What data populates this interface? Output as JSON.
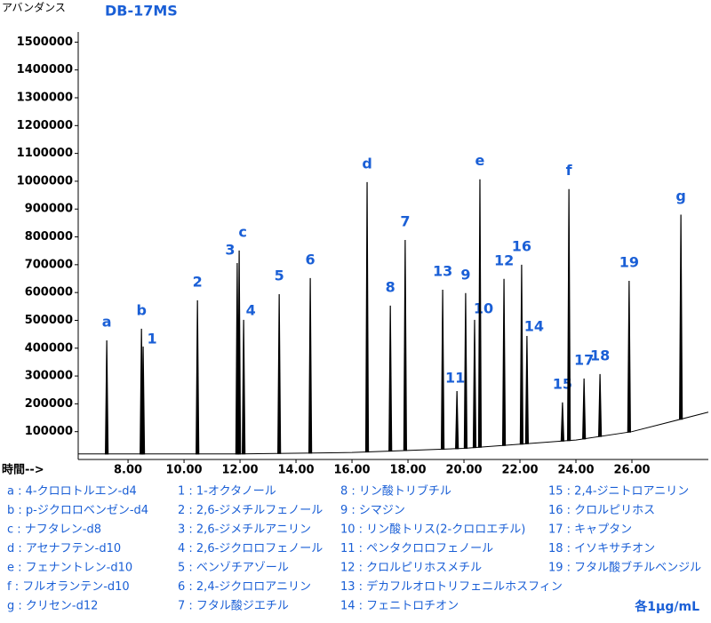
{
  "chart_data": {
    "type": "chromatogram",
    "title": "DB-17MS",
    "y_label": "アバンダンス",
    "x_label": "時間-->",
    "color": "#000000",
    "label_color": "#1a5fd6",
    "xlim": [
      6.22,
      28.73
    ],
    "ylim": [
      0,
      1530000
    ],
    "xticks": [
      {
        "value": 8,
        "label": "8.00"
      },
      {
        "value": 10,
        "label": "10.00"
      },
      {
        "value": 12,
        "label": "12.00"
      },
      {
        "value": 14,
        "label": "14.00"
      },
      {
        "value": 16,
        "label": "16.00"
      },
      {
        "value": 18,
        "label": "18.00"
      },
      {
        "value": 20,
        "label": "20.00"
      },
      {
        "value": 22,
        "label": "22.00"
      },
      {
        "value": 24,
        "label": "24.00"
      },
      {
        "value": 26,
        "label": "26.00"
      }
    ],
    "yticks": [
      100000,
      200000,
      300000,
      400000,
      500000,
      600000,
      700000,
      800000,
      900000,
      1000000,
      1100000,
      1200000,
      1300000,
      1400000,
      1500000
    ],
    "baseline": {
      "x": [
        6.22,
        12,
        16,
        20,
        24,
        26,
        28.73
      ],
      "values": [
        20000,
        20000,
        25000,
        40000,
        70000,
        100000,
        170000
      ]
    },
    "peaks": {
      "labels": [
        "a",
        "b",
        "1",
        "2",
        "3",
        "c",
        "4",
        "5",
        "6",
        "d",
        "8",
        "7",
        "13",
        "11",
        "9",
        "10",
        "e",
        "12",
        "16",
        "14",
        "15",
        "f",
        "17",
        "18",
        "19",
        "g"
      ],
      "x": [
        7.24,
        8.48,
        8.54,
        10.48,
        11.9,
        11.97,
        12.13,
        13.4,
        14.51,
        16.54,
        17.37,
        17.9,
        19.24,
        19.75,
        20.06,
        20.38,
        20.57,
        21.43,
        22.06,
        22.25,
        23.52,
        23.75,
        24.29,
        24.86,
        25.9,
        27.75
      ],
      "values": [
        428000,
        470000,
        406000,
        572000,
        706000,
        751000,
        502000,
        594000,
        652000,
        997000,
        553000,
        789000,
        610000,
        246000,
        598000,
        502000,
        1007000,
        649000,
        700000,
        444000,
        205000,
        972000,
        291000,
        307000,
        642000,
        880000
      ]
    },
    "legend": [
      [
        "a : 4-クロロトルエン-d4",
        "b : p-ジクロロベンゼン-d4",
        "c : ナフタレン-d8",
        "d : アセナフテン-d10",
        "e : フェナントレン-d10",
        "f : フルオランテン-d10",
        "g : クリセン-d12"
      ],
      [
        "1 : 1-オクタノール",
        "2 : 2,6-ジメチルフェノール",
        "3 : 2,6-ジメチルアニリン",
        "4 : 2,6-ジクロロフェノール",
        "5 : ベンゾチアゾール",
        "6 : 2,4-ジクロロアニリン",
        "7 : フタル酸ジエチル"
      ],
      [
        "8 : リン酸トリブチル",
        "9 : シマジン",
        "10 : リン酸トリス(2-クロロエチル)",
        "11 : ペンタクロロフェノール",
        "12 : クロルピリホスメチル",
        "13 : デカフルオロトリフェニルホスフィン",
        "14 : フェニトロチオン"
      ],
      [
        "15 : 2,4-ジニトロアニリン",
        "16 : クロルピリホス",
        "17 : キャプタン",
        "18 : イソキサチオン",
        "19 : フタル酸ブチルベンジル"
      ]
    ],
    "note": "各1μg/mL"
  }
}
